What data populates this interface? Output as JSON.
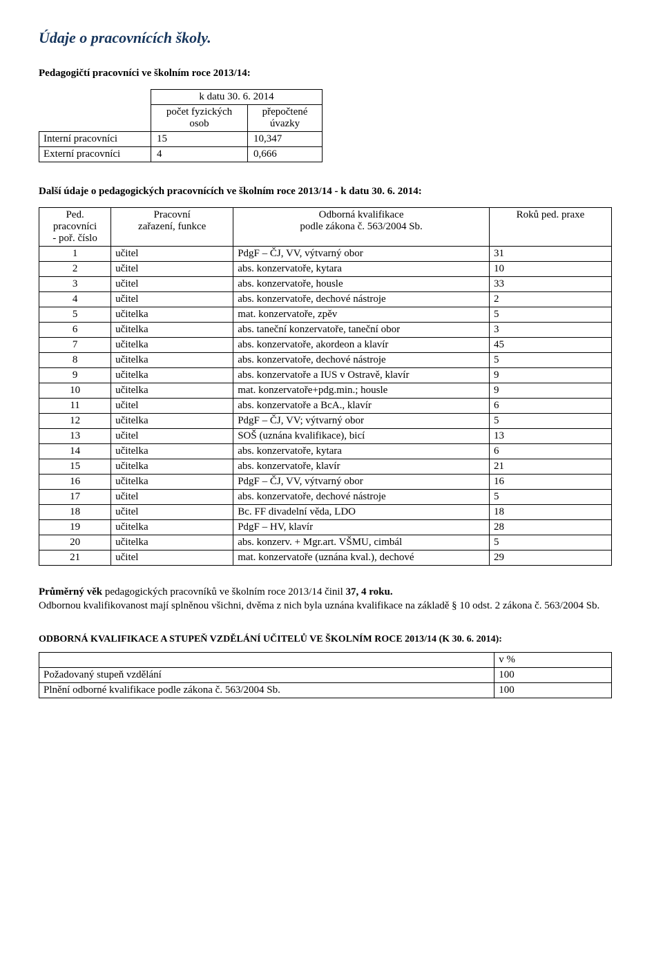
{
  "page": {
    "title": "Údaje o pracovnících školy.",
    "sub1": "Pedagogičtí pracovníci ve školním roce 2013/14:",
    "sub2": "Další údaje o pedagogických pracovnících ve školním roce 2013/14 -  k datu 30. 6. 2014:"
  },
  "summary": {
    "header_date": "k datu 30. 6. 2014",
    "header_col1": "počet fyzických\nosob",
    "header_col2": "přepočtené\núvazky",
    "rows": [
      {
        "label": "Interní pracovníci",
        "count": "15",
        "fte": "10,347"
      },
      {
        "label": "Externí pracovníci",
        "count": "4",
        "fte": "0,666"
      }
    ]
  },
  "staff": {
    "headers": {
      "num": "Ped.\npracovníci\n- poř. číslo",
      "role": "Pracovní\nzařazení, funkce",
      "qual": "Odborná kvalifikace\npodle zákona č. 563/2004 Sb.",
      "years": "Roků ped. praxe"
    },
    "rows": [
      {
        "n": "1",
        "role": "učitel",
        "qual": "PdgF – ČJ, VV, výtvarný obor",
        "years": "31"
      },
      {
        "n": "2",
        "role": "učitel",
        "qual": "abs. konzervatoře, kytara",
        "years": "10"
      },
      {
        "n": "3",
        "role": "učitel",
        "qual": "abs. konzervatoře, housle",
        "years": "33"
      },
      {
        "n": "4",
        "role": "učitel",
        "qual": "abs. konzervatoře, dechové nástroje",
        "years": "2"
      },
      {
        "n": "5",
        "role": "učitelka",
        "qual": "mat. konzervatoře, zpěv",
        "years": "5"
      },
      {
        "n": "6",
        "role": "učitelka",
        "qual": "abs. taneční konzervatoře, taneční obor",
        "years": "3"
      },
      {
        "n": "7",
        "role": "učitelka",
        "qual": "abs. konzervatoře, akordeon a klavír",
        "years": "45"
      },
      {
        "n": "8",
        "role": "učitelka",
        "qual": "abs. konzervatoře, dechové nástroje",
        "years": "5"
      },
      {
        "n": "9",
        "role": "učitelka",
        "qual": "abs. konzervatoře a IUS v Ostravě, klavír",
        "years": "9"
      },
      {
        "n": "10",
        "role": "učitelka",
        "qual": "mat. konzervatoře+pdg.min.; housle",
        "years": "9"
      },
      {
        "n": "11",
        "role": "učitel",
        "qual": "abs. konzervatoře a BcA., klavír",
        "years": "6"
      },
      {
        "n": "12",
        "role": "učitelka",
        "qual": "PdgF – ČJ, VV; výtvarný obor",
        "years": "5"
      },
      {
        "n": "13",
        "role": "učitel",
        "qual": "SOŠ (uznána kvalifikace), bicí",
        "years": "13"
      },
      {
        "n": "14",
        "role": "učitelka",
        "qual": "abs. konzervatoře, kytara",
        "years": "6"
      },
      {
        "n": "15",
        "role": "učitelka",
        "qual": "abs. konzervatoře, klavír",
        "years": "21"
      },
      {
        "n": "16",
        "role": "učitelka",
        "qual": "PdgF – ČJ, VV, výtvarný obor",
        "years": "16"
      },
      {
        "n": "17",
        "role": "učitel",
        "qual": "abs. konzervatoře, dechové nástroje",
        "years": "5"
      },
      {
        "n": "18",
        "role": "učitel",
        "qual": "Bc. FF divadelní věda, LDO",
        "years": "18"
      },
      {
        "n": "19",
        "role": "učitelka",
        "qual": "PdgF – HV, klavír",
        "years": "28"
      },
      {
        "n": "20",
        "role": "učitelka",
        "qual": "abs. konzerv. + Mgr.art. VŠMU, cimbál",
        "years": "5"
      },
      {
        "n": "21",
        "role": "učitel",
        "qual": "mat. konzervatoře (uznána kval.), dechové",
        "years": "29"
      }
    ]
  },
  "avg_age": {
    "prefix": "Průměrný věk",
    "rest": " pedagogických pracovníků ve školním roce 2013/14 činil ",
    "value": "37, 4 roku."
  },
  "odborna_text": "Odbornou kvalifikovanost mají splněnou všichni, dvěma z nich byla uznána kvalifikace na základě § 10 odst. 2 zákona č. 563/2004 Sb.",
  "caps_heading": {
    "text": "ODBORNÁ KVALIFIKACE A STUPEŇ VZDĚLÁNÍ UČITELŮ VE ŠKOLNÍM ROCE  2013/14 ",
    "suffix": "(K  30. 6. 2014):"
  },
  "qual_table": {
    "header": "v %",
    "rows": [
      {
        "label": "Požadovaný stupeň vzdělání",
        "val": "100"
      },
      {
        "label": "Plnění odborné kvalifikace podle zákona č. 563/2004 Sb.",
        "val": "100"
      }
    ]
  }
}
